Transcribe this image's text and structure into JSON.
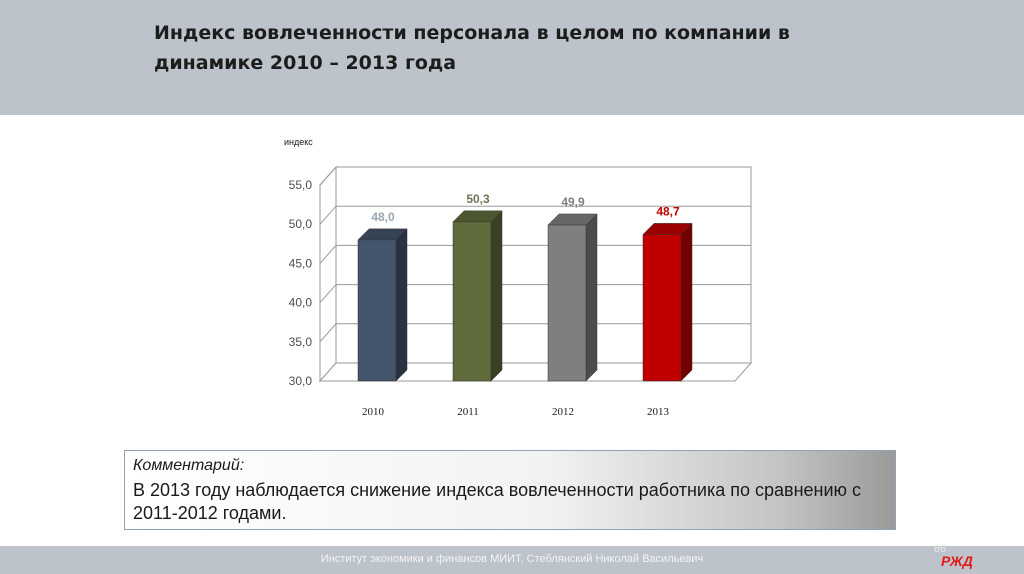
{
  "slide": {
    "title": "Индекс вовлеченности персонала в целом по компании в динамике 2010 – 2013 года",
    "page_number": "86",
    "footer": "Институт экономики и финансов МИИТ, Стеблянский Николай Васильевич",
    "logo_text": "РЖД"
  },
  "comment": {
    "heading": "Комментарий:",
    "text": "В 2013 году наблюдается снижение индекса вовлеченности работника по сравнению с 2011-2012 годами."
  },
  "chart_data": {
    "type": "bar",
    "title": "",
    "ylabel": "индекс",
    "xlabel": "",
    "categories": [
      "2010",
      "2011",
      "2012",
      "2013"
    ],
    "values": [
      48.0,
      50.3,
      49.9,
      48.7
    ],
    "value_labels": [
      "48,0",
      "50,3",
      "49,9",
      "48,7"
    ],
    "ylim": [
      30,
      55
    ],
    "yticks": [
      "30,0",
      "35,0",
      "40,0",
      "45,0",
      "50,0",
      "55,0"
    ],
    "bar_colors": [
      "#44546a",
      "#5f6b3a",
      "#7f7f7f",
      "#c00000"
    ],
    "label_colors": [
      "#9aa5b2",
      "#6b7550",
      "#7f7f7f",
      "#c00000"
    ],
    "grid": true,
    "style": "3d",
    "legend": "none"
  }
}
